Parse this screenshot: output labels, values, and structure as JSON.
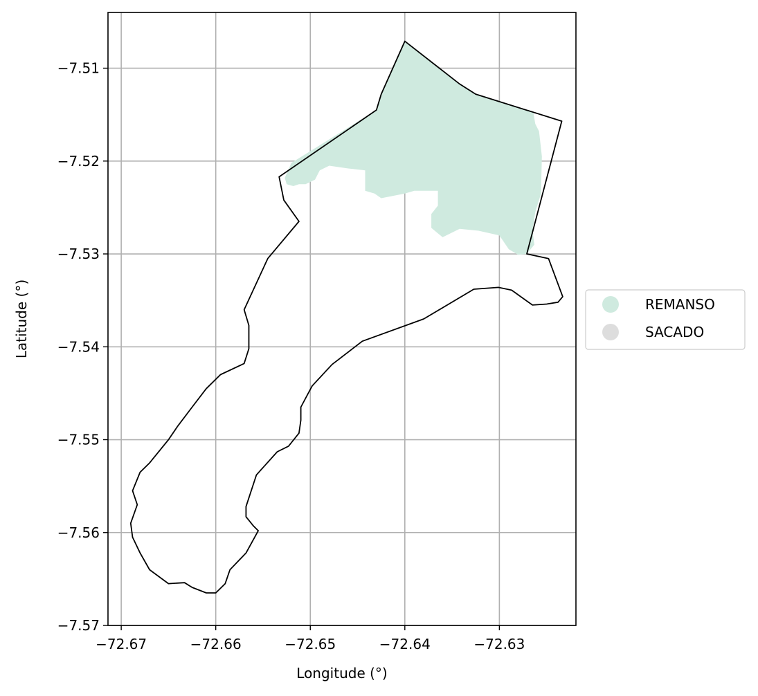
{
  "axes": {
    "xlabel": "Longitude (°)",
    "ylabel": "Latitude (°)",
    "xlim": [
      -72.6714,
      -72.6219
    ],
    "ylim": [
      -7.57,
      -7.504
    ],
    "xticks": [
      -72.67,
      -72.66,
      -72.65,
      -72.64,
      -72.63
    ],
    "xtick_labels": [
      "−72.67",
      "−72.66",
      "−72.65",
      "−72.64",
      "−72.63"
    ],
    "yticks": [
      -7.51,
      -7.52,
      -7.53,
      -7.54,
      -7.55,
      -7.56,
      -7.57
    ],
    "ytick_labels": [
      "−7.51",
      "−7.52",
      "−7.53",
      "−7.54",
      "−7.55",
      "−7.56",
      "−7.57"
    ],
    "grid": true
  },
  "legend": {
    "placement": "center-right outside",
    "items": [
      {
        "label": "REMANSO",
        "color": "#cfeadf"
      },
      {
        "label": "SACADO",
        "color": "#dddddd"
      }
    ]
  },
  "colors": {
    "remanso_fill": "#cfeadf",
    "boundary_stroke": "#000000",
    "grid": "#b0b0b0"
  },
  "chart_data": {
    "type": "map",
    "boundary": [
      [
        -72.64,
        -7.5071
      ],
      [
        -72.6342,
        -7.5117
      ],
      [
        -72.6325,
        -7.5128
      ],
      [
        -72.6234,
        -7.5157
      ],
      [
        -72.6271,
        -7.53
      ],
      [
        -72.6248,
        -7.5305
      ],
      [
        -72.6233,
        -7.5346
      ],
      [
        -72.6238,
        -7.5352
      ],
      [
        -72.625,
        -7.5354
      ],
      [
        -72.6265,
        -7.5355
      ],
      [
        -72.6287,
        -7.5339
      ],
      [
        -72.6301,
        -7.5336
      ],
      [
        -72.6327,
        -7.5338
      ],
      [
        -72.638,
        -7.537
      ],
      [
        -72.6445,
        -7.5394
      ],
      [
        -72.6477,
        -7.5419
      ],
      [
        -72.6498,
        -7.5442
      ],
      [
        -72.651,
        -7.5465
      ],
      [
        -72.651,
        -7.5479
      ],
      [
        -72.6512,
        -7.5493
      ],
      [
        -72.6523,
        -7.5507
      ],
      [
        -72.6535,
        -7.5513
      ],
      [
        -72.6557,
        -7.5538
      ],
      [
        -72.6568,
        -7.5572
      ],
      [
        -72.6568,
        -7.5583
      ],
      [
        -72.656,
        -7.5593
      ],
      [
        -72.6555,
        -7.5598
      ],
      [
        -72.6568,
        -7.5622
      ],
      [
        -72.6585,
        -7.564
      ],
      [
        -72.659,
        -7.5655
      ],
      [
        -72.66,
        -7.5665
      ],
      [
        -72.661,
        -7.5665
      ],
      [
        -72.6625,
        -7.5659
      ],
      [
        -72.6633,
        -7.5654
      ],
      [
        -72.665,
        -7.5655
      ],
      [
        -72.667,
        -7.564
      ],
      [
        -72.668,
        -7.5622
      ],
      [
        -72.6688,
        -7.5605
      ],
      [
        -72.669,
        -7.559
      ],
      [
        -72.6683,
        -7.557
      ],
      [
        -72.6688,
        -7.5555
      ],
      [
        -72.668,
        -7.5535
      ],
      [
        -72.667,
        -7.5525
      ],
      [
        -72.665,
        -7.55
      ],
      [
        -72.664,
        -7.5485
      ],
      [
        -72.6625,
        -7.5465
      ],
      [
        -72.661,
        -7.5445
      ],
      [
        -72.6595,
        -7.543
      ],
      [
        -72.657,
        -7.5418
      ],
      [
        -72.6565,
        -7.5402
      ],
      [
        -72.6565,
        -7.5377
      ],
      [
        -72.657,
        -7.536
      ],
      [
        -72.6545,
        -7.5305
      ],
      [
        -72.6512,
        -7.5265
      ],
      [
        -72.6528,
        -7.5242
      ],
      [
        -72.6533,
        -7.5217
      ],
      [
        -72.643,
        -7.5145
      ],
      [
        -72.6425,
        -7.5128
      ],
      [
        -72.64,
        -7.5071
      ]
    ],
    "regions": [
      {
        "name": "REMANSO",
        "polygon": [
          [
            -72.64,
            -7.5071
          ],
          [
            -72.6342,
            -7.5117
          ],
          [
            -72.6325,
            -7.5128
          ],
          [
            -72.6264,
            -7.5148
          ],
          [
            -72.6262,
            -7.516
          ],
          [
            -72.6258,
            -7.5168
          ],
          [
            -72.6255,
            -7.5195
          ],
          [
            -72.6256,
            -7.5235
          ],
          [
            -72.6262,
            -7.5255
          ],
          [
            -72.6265,
            -7.5275
          ],
          [
            -72.6263,
            -7.529
          ],
          [
            -72.6271,
            -7.53
          ],
          [
            -72.628,
            -7.5301
          ],
          [
            -72.629,
            -7.5295
          ],
          [
            -72.63,
            -7.528
          ],
          [
            -72.6322,
            -7.5275
          ],
          [
            -72.6342,
            -7.5273
          ],
          [
            -72.636,
            -7.5282
          ],
          [
            -72.6372,
            -7.5272
          ],
          [
            -72.6372,
            -7.5257
          ],
          [
            -72.6365,
            -7.5248
          ],
          [
            -72.6365,
            -7.5232
          ],
          [
            -72.639,
            -7.5232
          ],
          [
            -72.64,
            -7.5235
          ],
          [
            -72.6425,
            -7.524
          ],
          [
            -72.6432,
            -7.5235
          ],
          [
            -72.6442,
            -7.5232
          ],
          [
            -72.6442,
            -7.521
          ],
          [
            -72.646,
            -7.5208
          ],
          [
            -72.648,
            -7.5205
          ],
          [
            -72.649,
            -7.521
          ],
          [
            -72.6495,
            -7.522
          ],
          [
            -72.6505,
            -7.5225
          ],
          [
            -72.6512,
            -7.5225
          ],
          [
            -72.6518,
            -7.5227
          ],
          [
            -72.6525,
            -7.5225
          ],
          [
            -72.6527,
            -7.5218
          ],
          [
            -72.652,
            -7.5202
          ],
          [
            -72.643,
            -7.5145
          ],
          [
            -72.6425,
            -7.5128
          ],
          [
            -72.64,
            -7.5071
          ]
        ]
      }
    ]
  }
}
